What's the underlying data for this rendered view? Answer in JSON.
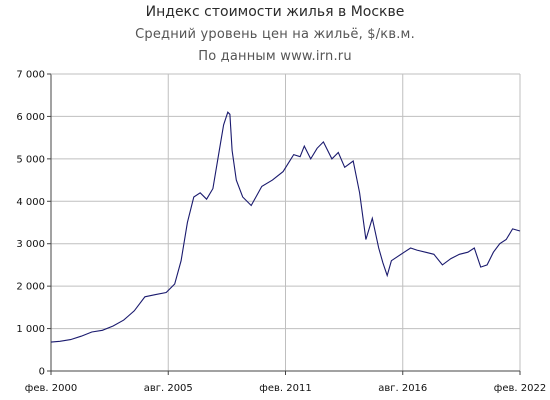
{
  "chart_data": {
    "type": "line",
    "title": "Индекс стоимости жилья в Москве",
    "subtitle": "Средний уровень цен на жильё, $/кв.м.",
    "source": "По данным www.irn.ru",
    "xlabel": "",
    "ylabel": "",
    "x_tick_labels": [
      "фев. 2000",
      "авг. 2005",
      "фев. 2011",
      "авг. 2016",
      "фев. 2022"
    ],
    "y_ticks": [
      0,
      1000,
      2000,
      3000,
      4000,
      5000,
      6000,
      7000
    ],
    "y_tick_labels": [
      "0",
      "1 000",
      "2 000",
      "3 000",
      "4 000",
      "5 000",
      "6 000",
      "7 000"
    ],
    "ylim": [
      0,
      7000
    ],
    "xlim": [
      2000.08,
      2022.15
    ],
    "grid": true,
    "line_color": "#1a1a6e",
    "series": [
      {
        "x": [
          2000.08,
          2000.5,
          2001.0,
          2001.5,
          2002.0,
          2002.5,
          2003.0,
          2003.5,
          2004.0,
          2004.5,
          2005.0,
          2005.5,
          2005.9,
          2006.2,
          2006.5,
          2006.8,
          2007.1,
          2007.4,
          2007.7,
          2008.0,
          2008.2,
          2008.4,
          2008.5,
          2008.6,
          2008.8,
          2009.1,
          2009.5,
          2010.0,
          2010.5,
          2011.0,
          2011.5,
          2011.8,
          2012.0,
          2012.3,
          2012.6,
          2012.9,
          2013.3,
          2013.6,
          2013.9,
          2014.3,
          2014.6,
          2014.9,
          2015.2,
          2015.5,
          2015.7,
          2015.9,
          2016.1,
          2016.4,
          2016.7,
          2017.0,
          2017.3,
          2017.7,
          2018.1,
          2018.5,
          2018.9,
          2019.3,
          2019.7,
          2020.0,
          2020.3,
          2020.6,
          2020.9,
          2021.2,
          2021.5,
          2021.8,
          2022.15
        ],
        "values": [
          680,
          700,
          740,
          820,
          920,
          960,
          1060,
          1200,
          1420,
          1750,
          1800,
          1850,
          2050,
          2600,
          3500,
          4100,
          4200,
          4050,
          4300,
          5200,
          5800,
          6100,
          6050,
          5200,
          4500,
          4100,
          3900,
          4350,
          4500,
          4700,
          5100,
          5050,
          5300,
          5000,
          5250,
          5400,
          5000,
          5150,
          4800,
          4950,
          4200,
          3100,
          3600,
          2900,
          2550,
          2250,
          2600,
          2700,
          2800,
          2900,
          2850,
          2800,
          2750,
          2500,
          2650,
          2750,
          2800,
          2900,
          2450,
          2500,
          2800,
          3000,
          3100,
          3350,
          3300
        ]
      }
    ]
  }
}
